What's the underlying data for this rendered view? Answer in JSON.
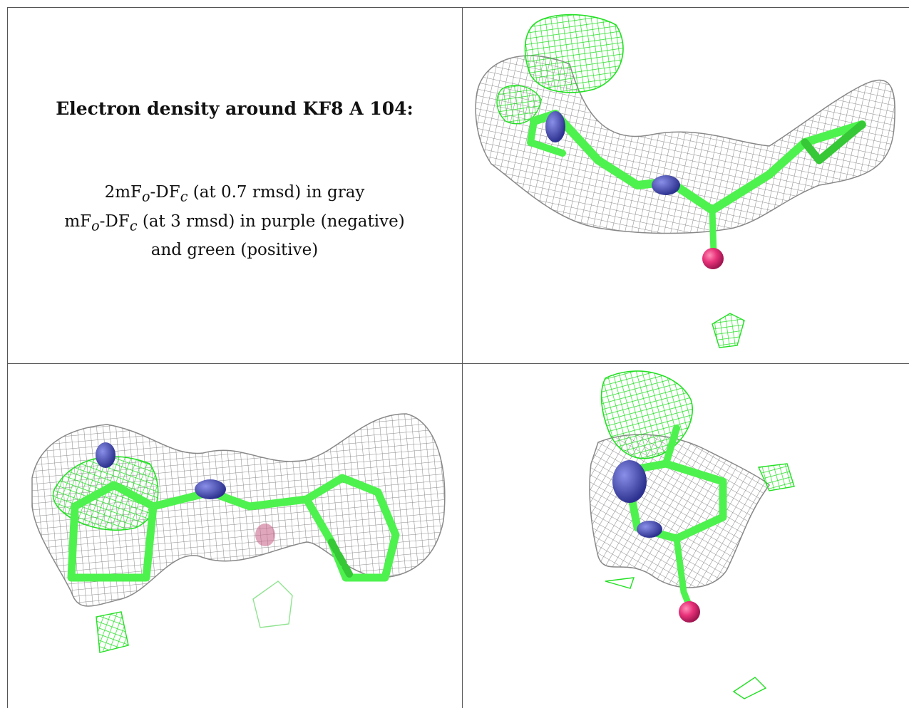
{
  "title": "Electron density around KF8 A 104:",
  "legend": {
    "line1": {
      "a": "2mF",
      "b": "o",
      "c": "-DF",
      "d": "c",
      "e": " (at 0.7 rmsd) in gray"
    },
    "line2": {
      "a": "mF",
      "b": "o",
      "c": "-DF",
      "d": "c",
      "e": " (at 3 rmsd) in purple (negative)"
    },
    "line3": "and green (positive)"
  },
  "colors": {
    "map_2fofc": "#9a9a9a",
    "map_positive": "#33e633",
    "carbon": "#4ef24e",
    "nitrogen": "#4a4fb0",
    "oxygen": "#e8327a"
  },
  "panels": [
    {
      "id": "view-1"
    },
    {
      "id": "view-2"
    },
    {
      "id": "view-3"
    }
  ]
}
